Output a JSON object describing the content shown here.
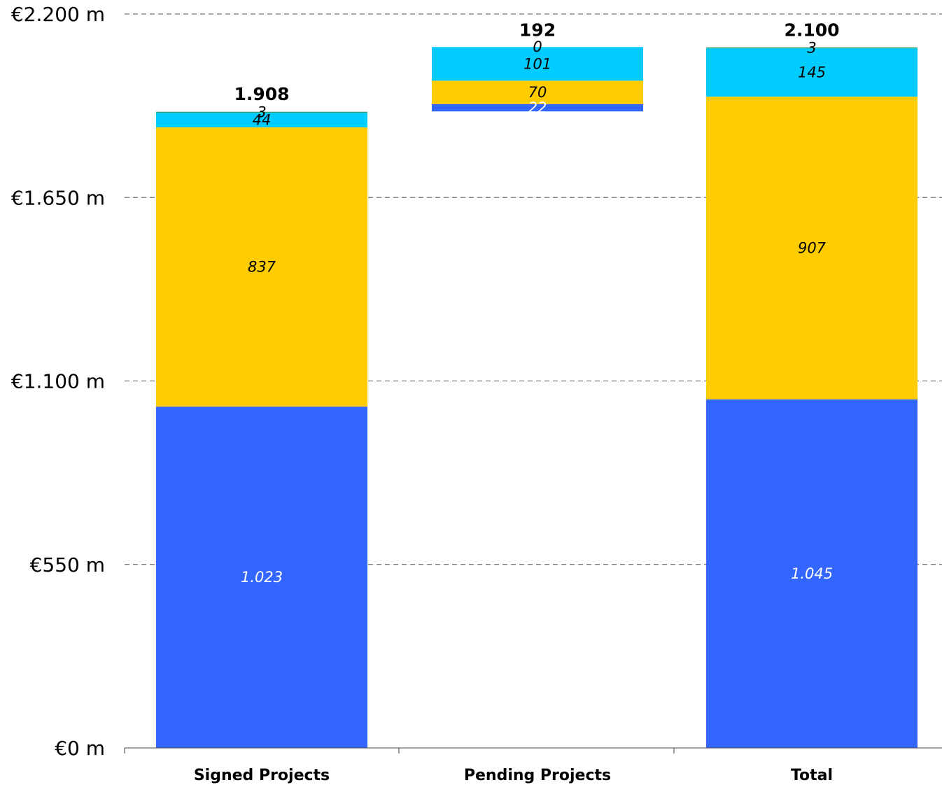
{
  "chart_data": {
    "type": "bar",
    "stacked": true,
    "waterfall": true,
    "categories": [
      "Signed Projects",
      "Pending Projects",
      "Total"
    ],
    "series": [
      {
        "values": [
          1023,
          22,
          1045
        ],
        "color": "#3366FF",
        "label_color": "#FFFFFF"
      },
      {
        "values": [
          837,
          70,
          907
        ],
        "color": "#FFCC00",
        "label_color": "#000000"
      },
      {
        "values": [
          44,
          101,
          145
        ],
        "color": "#00CCFF",
        "label_color": "#000000"
      },
      {
        "values": [
          3,
          0,
          3
        ],
        "color": "#339966",
        "label_color": "#000000"
      }
    ],
    "segment_labels": [
      [
        "1.023",
        "837",
        "44",
        "3"
      ],
      [
        "22",
        "70",
        "101",
        "0"
      ],
      [
        "1.045",
        "907",
        "145",
        "3"
      ]
    ],
    "totals": [
      1908,
      192,
      2100
    ],
    "total_labels": [
      "1.908",
      "192",
      "2.100"
    ],
    "bar_base": [
      0,
      1908,
      0
    ],
    "yticks": [
      0,
      550,
      1100,
      1650,
      2200
    ],
    "ytick_labels": [
      "€0 m",
      "€550 m",
      "€1.100 m",
      "€1.650 m",
      "€2.200 m"
    ],
    "ylim": [
      0,
      2200
    ],
    "grid": true,
    "title": "",
    "xlabel": "",
    "ylabel": ""
  }
}
